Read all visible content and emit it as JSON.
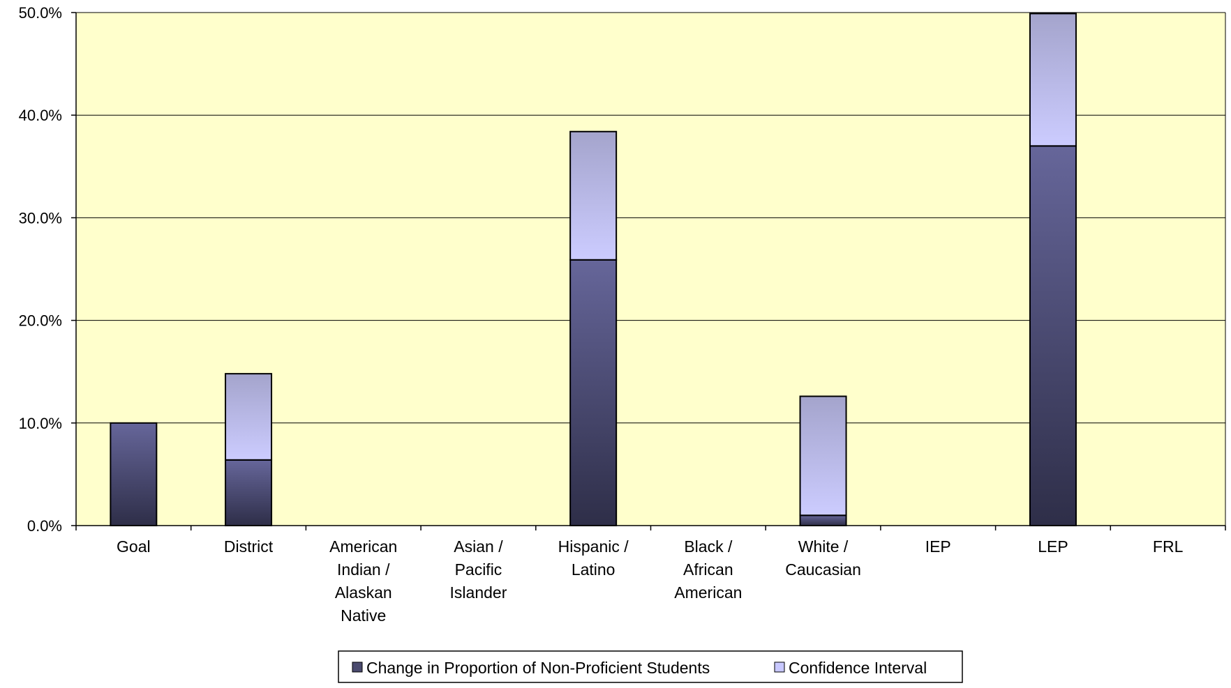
{
  "chart_data": {
    "type": "bar",
    "stacked": true,
    "categories": [
      [
        "Goal"
      ],
      [
        "District"
      ],
      [
        "American",
        "Indian /",
        "Alaskan",
        "Native"
      ],
      [
        "Asian /",
        "Pacific",
        "Islander"
      ],
      [
        "Hispanic /",
        "Latino"
      ],
      [
        "Black /",
        "African",
        "American"
      ],
      [
        "White /",
        "Caucasian"
      ],
      [
        "IEP"
      ],
      [
        "LEP"
      ],
      [
        "FRL"
      ]
    ],
    "series": [
      {
        "name": "Change in Proportion of Non-Proficient Students",
        "values": [
          10.0,
          6.4,
          null,
          null,
          25.9,
          null,
          1.0,
          null,
          37.0,
          null
        ],
        "color": "#5a5a8c"
      },
      {
        "name": "Confidence Interval",
        "values": [
          0,
          8.4,
          null,
          null,
          12.5,
          null,
          11.6,
          null,
          12.9,
          null
        ],
        "color": "#c8c8ff"
      }
    ],
    "yticks": [
      "0.0%",
      "10.0%",
      "20.0%",
      "30.0%",
      "40.0%",
      "50.0%"
    ],
    "ylim": [
      0,
      50
    ],
    "grid": true,
    "legend_position": "bottom",
    "plot_background": "#ffffcc"
  }
}
